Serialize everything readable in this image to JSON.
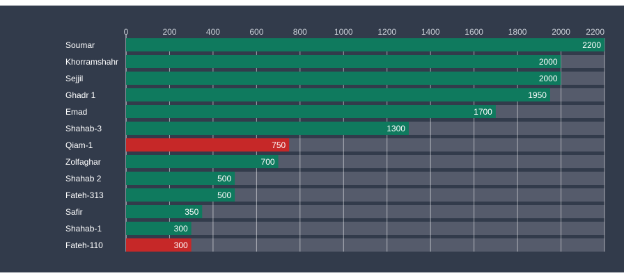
{
  "chart_data": {
    "type": "bar",
    "orientation": "horizontal",
    "categories": [
      "Soumar",
      "Khorramshahr",
      "Sejjil",
      "Ghadr 1",
      "Emad",
      "Shahab-3",
      "Qiam-1",
      "Zolfaghar",
      "Shahab 2",
      "Fateh-313",
      "Safir",
      "Shahab-1",
      "Fateh-110"
    ],
    "values": [
      2200,
      2000,
      2000,
      1950,
      1700,
      1300,
      750,
      700,
      500,
      500,
      350,
      300,
      300
    ],
    "bar_colors": [
      "#0f7a5e",
      "#0f7a5e",
      "#0f7a5e",
      "#0f7a5e",
      "#0f7a5e",
      "#0f7a5e",
      "#c62828",
      "#0f7a5e",
      "#0f7a5e",
      "#0f7a5e",
      "#0f7a5e",
      "#0f7a5e",
      "#c62828"
    ],
    "x_ticks": [
      0,
      200,
      400,
      600,
      800,
      1000,
      1200,
      1400,
      1600,
      1800,
      2000,
      2200
    ],
    "xlim": [
      0,
      2200
    ],
    "axis_position": "top",
    "grid": true,
    "data_labels": true,
    "title": "",
    "xlabel": "",
    "ylabel": ""
  },
  "colors": {
    "background": "#323b4b",
    "track": "#555b6b",
    "primary": "#0f7a5e",
    "highlight": "#c62828"
  }
}
